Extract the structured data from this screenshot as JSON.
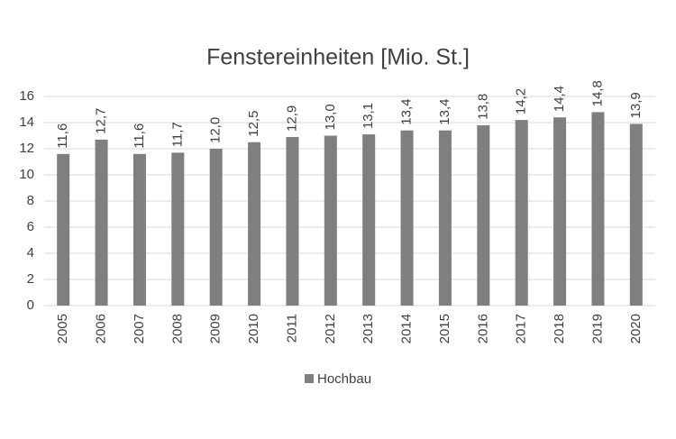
{
  "chart_data": {
    "type": "bar",
    "title": "Fenstereinheiten [Mio. St.]",
    "categories": [
      "2005",
      "2006",
      "2007",
      "2008",
      "2009",
      "2010",
      "2011",
      "2012",
      "2013",
      "2014",
      "2015",
      "2016",
      "2017",
      "2018",
      "2019",
      "2020"
    ],
    "series": [
      {
        "name": "Hochbau",
        "color": "#7f7f7f",
        "values": [
          11.6,
          12.7,
          11.6,
          11.7,
          12.0,
          12.5,
          12.9,
          13.0,
          13.1,
          13.4,
          13.4,
          13.8,
          14.2,
          14.4,
          14.8,
          13.9
        ],
        "value_labels": [
          "11,6",
          "12,7",
          "11,6",
          "11,7",
          "12,0",
          "12,5",
          "12,9",
          "13,0",
          "13,1",
          "13,4",
          "13,4",
          "13,8",
          "14,2",
          "14,4",
          "14,8",
          "13,9"
        ]
      }
    ],
    "ylim": [
      0,
      16
    ],
    "yticks": [
      0,
      2,
      4,
      6,
      8,
      10,
      12,
      14,
      16
    ],
    "grid": true,
    "legend": "bottom"
  }
}
